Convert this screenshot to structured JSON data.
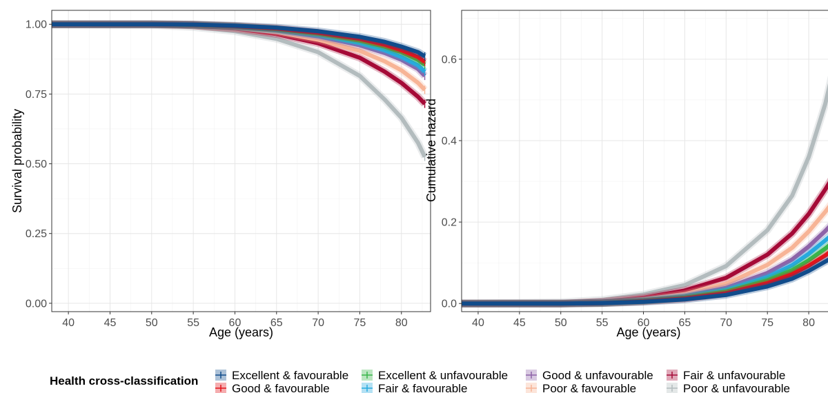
{
  "legend": {
    "title": "Health cross-classification",
    "position": "bottom"
  },
  "chart_data": [
    {
      "type": "line",
      "xlabel": "Age (years)",
      "ylabel": "Survival probability",
      "xlim": [
        38,
        83.5
      ],
      "ylim": [
        -0.03,
        1.05
      ],
      "x_ticks": [
        40,
        45,
        50,
        55,
        60,
        65,
        70,
        75,
        80
      ],
      "y_ticks": [
        0,
        0.25,
        0.5,
        0.75,
        1
      ],
      "y_tick_labels": [
        "0.00",
        "0.25",
        "0.50",
        "0.75",
        "1.00"
      ],
      "grid": true,
      "series": [
        {
          "name": "Excellent & favourable",
          "color": "#114c8b",
          "x": [
            38,
            50,
            55,
            60,
            65,
            70,
            75,
            78,
            80,
            82,
            82.8
          ],
          "y": [
            1,
            1,
            0.999,
            0.995,
            0.988,
            0.975,
            0.955,
            0.937,
            0.92,
            0.9,
            0.885
          ]
        },
        {
          "name": "Good & favourable",
          "color": "#e2141b",
          "x": [
            38,
            50,
            55,
            60,
            65,
            70,
            75,
            78,
            80,
            82,
            82.8
          ],
          "y": [
            1,
            1,
            0.999,
            0.994,
            0.985,
            0.97,
            0.948,
            0.927,
            0.907,
            0.883,
            0.865
          ]
        },
        {
          "name": "Excellent & unfavourable",
          "color": "#39b54a",
          "x": [
            38,
            50,
            55,
            60,
            65,
            70,
            75,
            78,
            80,
            82,
            82.8
          ],
          "y": [
            1,
            1,
            0.998,
            0.993,
            0.983,
            0.967,
            0.942,
            0.92,
            0.9,
            0.872,
            0.855
          ]
        },
        {
          "name": "Fair & favourable",
          "color": "#27aadf",
          "x": [
            38,
            50,
            55,
            60,
            65,
            70,
            75,
            78,
            80,
            82,
            82.8
          ],
          "y": [
            1,
            1,
            0.998,
            0.992,
            0.98,
            0.962,
            0.933,
            0.907,
            0.883,
            0.853,
            0.83
          ]
        },
        {
          "name": "Good & unfavourable",
          "color": "#8e63a8",
          "x": [
            38,
            50,
            55,
            60,
            65,
            70,
            75,
            78,
            80,
            82,
            82.8
          ],
          "y": [
            1,
            1,
            0.998,
            0.991,
            0.978,
            0.957,
            0.925,
            0.897,
            0.873,
            0.84,
            0.815
          ]
        },
        {
          "name": "Poor & favourable",
          "color": "#f7b496",
          "x": [
            38,
            50,
            55,
            60,
            65,
            70,
            75,
            78,
            80,
            82,
            82.8
          ],
          "y": [
            1,
            1,
            0.997,
            0.988,
            0.972,
            0.945,
            0.905,
            0.867,
            0.835,
            0.79,
            0.765
          ]
        },
        {
          "name": "Fair & unfavourable",
          "color": "#a50a37",
          "x": [
            38,
            50,
            55,
            60,
            65,
            70,
            75,
            78,
            80,
            82,
            82.8
          ],
          "y": [
            1,
            1,
            0.996,
            0.985,
            0.965,
            0.932,
            0.88,
            0.83,
            0.79,
            0.74,
            0.715
          ]
        },
        {
          "name": "Poor & unfavourable",
          "color": "#b3bcbe",
          "x": [
            38,
            50,
            55,
            60,
            65,
            70,
            75,
            78,
            80,
            82,
            82.8
          ],
          "y": [
            1,
            0.997,
            0.99,
            0.975,
            0.948,
            0.9,
            0.815,
            0.73,
            0.665,
            0.575,
            0.525
          ]
        }
      ]
    },
    {
      "type": "line",
      "xlabel": "Age (years)",
      "ylabel": "Cumulative hazard",
      "xlim": [
        38,
        83.5
      ],
      "ylim": [
        -0.02,
        0.72
      ],
      "x_ticks": [
        40,
        45,
        50,
        55,
        60,
        65,
        70,
        75,
        80
      ],
      "y_ticks": [
        0,
        0.2,
        0.4,
        0.6
      ],
      "y_tick_labels": [
        "0.0",
        "0.2",
        "0.4",
        "0.6"
      ],
      "grid": true,
      "series": [
        {
          "name": "Excellent & favourable",
          "color": "#114c8b",
          "x": [
            38,
            50,
            55,
            60,
            65,
            70,
            75,
            78,
            80,
            82,
            83.5
          ],
          "y": [
            0,
            0,
            0.001,
            0.004,
            0.01,
            0.021,
            0.042,
            0.061,
            0.08,
            0.103,
            0.12
          ]
        },
        {
          "name": "Good & favourable",
          "color": "#e2141b",
          "x": [
            38,
            50,
            55,
            60,
            65,
            70,
            75,
            78,
            80,
            82,
            83.5
          ],
          "y": [
            0,
            0,
            0.001,
            0.005,
            0.012,
            0.025,
            0.05,
            0.072,
            0.093,
            0.118,
            0.14
          ]
        },
        {
          "name": "Excellent & unfavourable",
          "color": "#39b54a",
          "x": [
            38,
            50,
            55,
            60,
            65,
            70,
            75,
            78,
            80,
            82,
            83.5
          ],
          "y": [
            0,
            0,
            0.001,
            0.006,
            0.014,
            0.029,
            0.057,
            0.082,
            0.106,
            0.135,
            0.16
          ]
        },
        {
          "name": "Fair & favourable",
          "color": "#27aadf",
          "x": [
            38,
            50,
            55,
            60,
            65,
            70,
            75,
            78,
            80,
            82,
            83.5
          ],
          "y": [
            0,
            0,
            0.002,
            0.007,
            0.016,
            0.033,
            0.065,
            0.094,
            0.122,
            0.155,
            0.18
          ]
        },
        {
          "name": "Good & unfavourable",
          "color": "#8e63a8",
          "x": [
            38,
            50,
            55,
            60,
            65,
            70,
            75,
            78,
            80,
            82,
            83.5
          ],
          "y": [
            0,
            0,
            0.002,
            0.008,
            0.018,
            0.038,
            0.075,
            0.108,
            0.14,
            0.178,
            0.21
          ]
        },
        {
          "name": "Poor & favourable",
          "color": "#f7b496",
          "x": [
            38,
            50,
            55,
            60,
            65,
            70,
            75,
            78,
            80,
            82,
            83.5
          ],
          "y": [
            0,
            0,
            0.003,
            0.01,
            0.023,
            0.048,
            0.095,
            0.137,
            0.177,
            0.225,
            0.265
          ]
        },
        {
          "name": "Fair & unfavourable",
          "color": "#a50a37",
          "x": [
            38,
            50,
            55,
            60,
            65,
            70,
            75,
            78,
            80,
            82,
            83.5
          ],
          "y": [
            0,
            0,
            0.004,
            0.014,
            0.032,
            0.063,
            0.12,
            0.172,
            0.22,
            0.28,
            0.33
          ]
        },
        {
          "name": "Poor & unfavourable",
          "color": "#b3bcbe",
          "x": [
            38,
            50,
            55,
            60,
            65,
            70,
            75,
            78,
            80,
            82,
            83.5
          ],
          "y": [
            0,
            0.003,
            0.009,
            0.022,
            0.045,
            0.092,
            0.18,
            0.265,
            0.36,
            0.49,
            0.62
          ]
        }
      ]
    }
  ]
}
